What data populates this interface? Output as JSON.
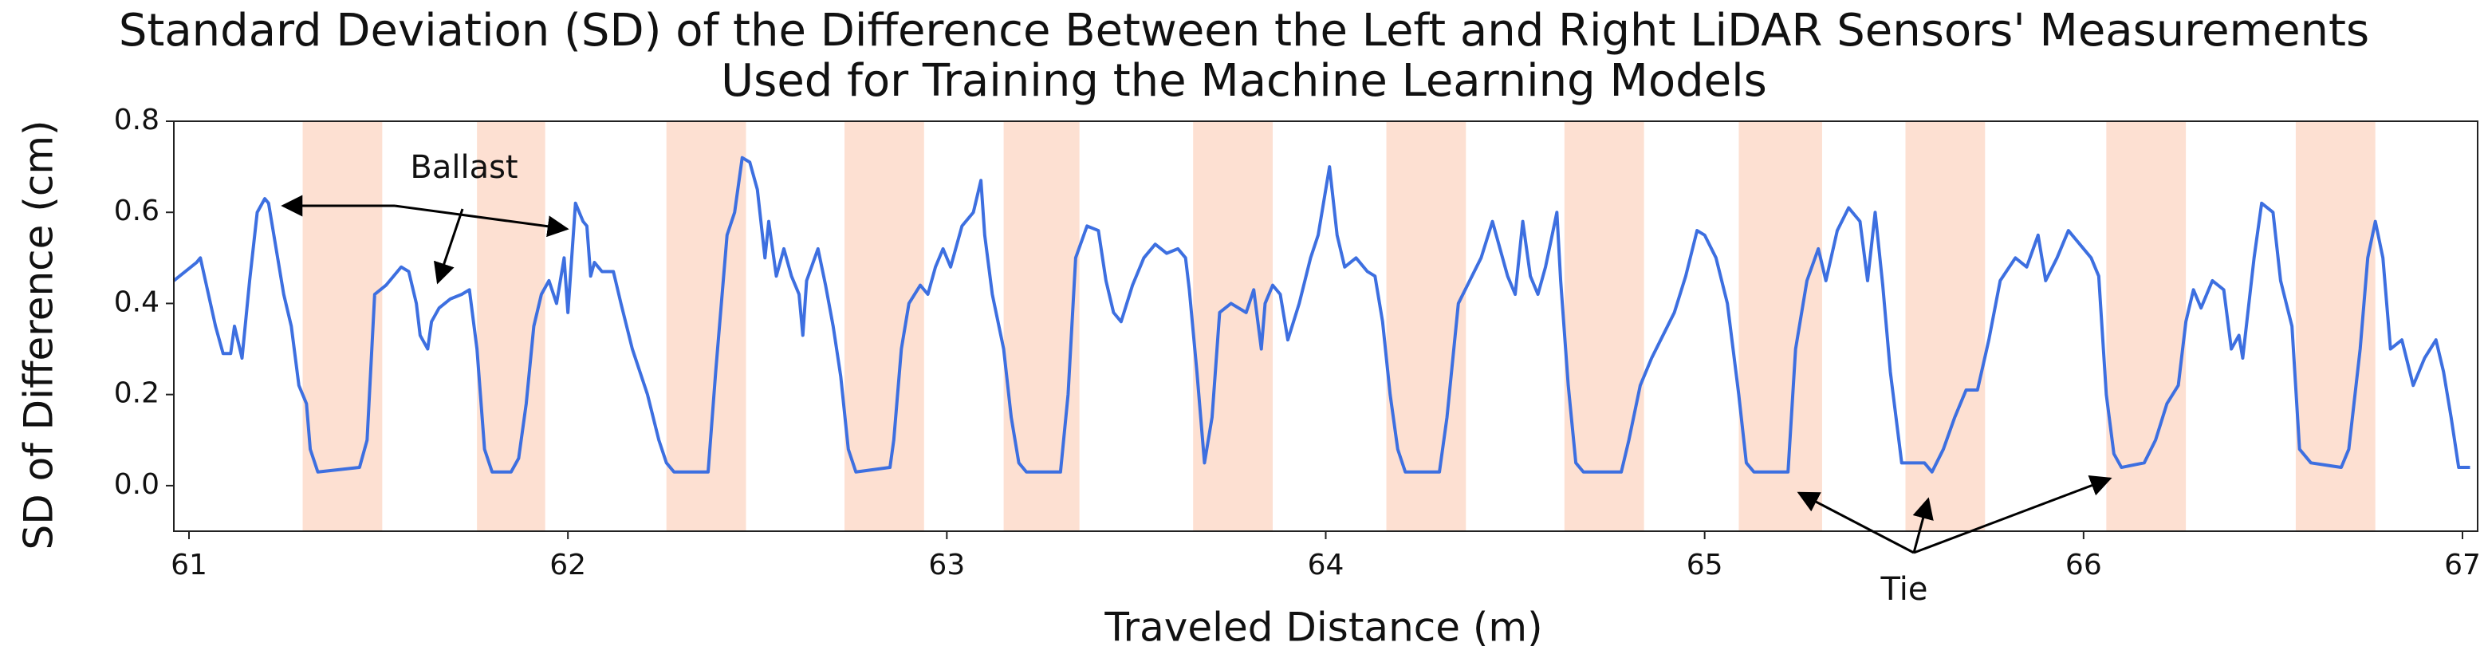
{
  "chart_data": {
    "type": "line",
    "title": [
      "Standard Deviation (SD) of the Difference Between the Left and Right LiDAR Sensors' Measurements",
      "Used for Training the Machine Learning Models"
    ],
    "xlabel": "Traveled Distance (m)",
    "ylabel": "SD of Difference (cm)",
    "xlim": [
      60.96,
      67.04
    ],
    "ylim": [
      -0.1,
      0.8
    ],
    "xticks": [
      61,
      62,
      63,
      64,
      65,
      66,
      67
    ],
    "yticks": [
      {
        "value": 0,
        "label": "0.0"
      },
      0.2,
      0.4,
      0.6,
      0.8
    ],
    "color": "#3d6fe0",
    "shade_color": "#fde0d2",
    "shaded_regions": [
      [
        61.3,
        61.51
      ],
      [
        61.76,
        61.94
      ],
      [
        62.26,
        62.47
      ],
      [
        62.73,
        62.94
      ],
      [
        63.15,
        63.35
      ],
      [
        63.65,
        63.86
      ],
      [
        64.16,
        64.37
      ],
      [
        64.63,
        64.84
      ],
      [
        65.09,
        65.31
      ],
      [
        65.53,
        65.74
      ],
      [
        66.06,
        66.27
      ],
      [
        66.56,
        66.77
      ]
    ],
    "annotations": [
      "Ballast",
      "Tie"
    ],
    "x": [
      60.96,
      61.02,
      61.03,
      61.07,
      61.09,
      61.11,
      61.12,
      61.14,
      61.16,
      61.18,
      61.2,
      61.21,
      61.23,
      61.25,
      61.27,
      61.29,
      61.31,
      61.32,
      61.34,
      61.45,
      61.47,
      61.49,
      61.52,
      61.56,
      61.58,
      61.6,
      61.61,
      61.63,
      61.64,
      61.66,
      61.69,
      61.72,
      61.74,
      61.76,
      61.78,
      61.8,
      61.85,
      61.87,
      61.89,
      61.91,
      61.93,
      61.95,
      61.97,
      61.99,
      62.0,
      62.02,
      62.04,
      62.05,
      62.06,
      62.07,
      62.09,
      62.12,
      62.14,
      62.17,
      62.21,
      62.24,
      62.26,
      62.28,
      62.37,
      62.39,
      62.42,
      62.44,
      62.46,
      62.48,
      62.5,
      62.52,
      62.53,
      62.55,
      62.57,
      62.59,
      62.61,
      62.62,
      62.63,
      62.66,
      62.68,
      62.7,
      62.72,
      62.74,
      62.76,
      62.85,
      62.86,
      62.88,
      62.9,
      62.93,
      62.95,
      62.97,
      62.99,
      63.01,
      63.04,
      63.07,
      63.09,
      63.1,
      63.12,
      63.15,
      63.17,
      63.19,
      63.21,
      63.3,
      63.32,
      63.34,
      63.37,
      63.4,
      63.42,
      63.44,
      63.46,
      63.49,
      63.52,
      63.55,
      63.58,
      63.61,
      63.63,
      63.64,
      63.66,
      63.68,
      63.7,
      63.72,
      63.75,
      63.79,
      63.81,
      63.83,
      63.84,
      63.86,
      63.88,
      63.9,
      63.93,
      63.96,
      63.98,
      64.01,
      64.03,
      64.05,
      64.08,
      64.11,
      64.13,
      64.15,
      64.17,
      64.19,
      64.21,
      64.3,
      64.32,
      64.35,
      64.38,
      64.41,
      64.44,
      64.46,
      64.48,
      64.5,
      64.52,
      64.54,
      64.56,
      64.58,
      64.61,
      64.62,
      64.64,
      64.66,
      64.68,
      64.78,
      64.8,
      64.83,
      64.86,
      64.89,
      64.92,
      64.95,
      64.98,
      65.0,
      65.03,
      65.06,
      65.09,
      65.11,
      65.13,
      65.22,
      65.24,
      65.27,
      65.3,
      65.32,
      65.35,
      65.38,
      65.41,
      65.43,
      65.45,
      65.47,
      65.49,
      65.52,
      65.58,
      65.6,
      65.63,
      65.66,
      65.69,
      65.72,
      65.75,
      65.78,
      65.82,
      65.85,
      65.88,
      65.9,
      65.93,
      65.96,
      65.99,
      66.02,
      66.04,
      66.06,
      66.08,
      66.1,
      66.16,
      66.19,
      66.22,
      66.25,
      66.27,
      66.29,
      66.31,
      66.34,
      66.37,
      66.39,
      66.41,
      66.42,
      66.45,
      66.47,
      66.5,
      66.52,
      66.55,
      66.57,
      66.6,
      66.68,
      66.7,
      66.73,
      66.75,
      66.77,
      66.79,
      66.81,
      66.84,
      66.87,
      66.9,
      66.93,
      66.95,
      66.97,
      66.99,
      67.02
    ],
    "values": [
      0.45,
      0.49,
      0.5,
      0.35,
      0.29,
      0.29,
      0.35,
      0.28,
      0.45,
      0.6,
      0.63,
      0.62,
      0.52,
      0.42,
      0.35,
      0.22,
      0.18,
      0.08,
      0.03,
      0.04,
      0.1,
      0.42,
      0.44,
      0.48,
      0.47,
      0.4,
      0.33,
      0.3,
      0.36,
      0.39,
      0.41,
      0.42,
      0.43,
      0.3,
      0.08,
      0.03,
      0.03,
      0.06,
      0.18,
      0.35,
      0.42,
      0.45,
      0.4,
      0.5,
      0.38,
      0.62,
      0.58,
      0.57,
      0.46,
      0.49,
      0.47,
      0.47,
      0.4,
      0.3,
      0.2,
      0.1,
      0.05,
      0.03,
      0.03,
      0.25,
      0.55,
      0.6,
      0.72,
      0.71,
      0.65,
      0.5,
      0.58,
      0.46,
      0.52,
      0.46,
      0.42,
      0.33,
      0.45,
      0.52,
      0.44,
      0.35,
      0.24,
      0.08,
      0.03,
      0.04,
      0.1,
      0.3,
      0.4,
      0.44,
      0.42,
      0.48,
      0.52,
      0.48,
      0.57,
      0.6,
      0.67,
      0.55,
      0.42,
      0.3,
      0.15,
      0.05,
      0.03,
      0.03,
      0.2,
      0.5,
      0.57,
      0.56,
      0.45,
      0.38,
      0.36,
      0.44,
      0.5,
      0.53,
      0.51,
      0.52,
      0.5,
      0.43,
      0.25,
      0.05,
      0.15,
      0.38,
      0.4,
      0.38,
      0.43,
      0.3,
      0.4,
      0.44,
      0.42,
      0.32,
      0.4,
      0.5,
      0.55,
      0.7,
      0.55,
      0.48,
      0.5,
      0.47,
      0.46,
      0.36,
      0.2,
      0.08,
      0.03,
      0.03,
      0.15,
      0.4,
      0.45,
      0.5,
      0.58,
      0.52,
      0.46,
      0.42,
      0.58,
      0.46,
      0.42,
      0.48,
      0.6,
      0.45,
      0.22,
      0.05,
      0.03,
      0.03,
      0.1,
      0.22,
      0.28,
      0.33,
      0.38,
      0.46,
      0.56,
      0.55,
      0.5,
      0.4,
      0.2,
      0.05,
      0.03,
      0.03,
      0.3,
      0.45,
      0.52,
      0.45,
      0.56,
      0.61,
      0.58,
      0.45,
      0.6,
      0.44,
      0.25,
      0.05,
      0.05,
      0.03,
      0.08,
      0.15,
      0.21,
      0.21,
      0.32,
      0.45,
      0.5,
      0.48,
      0.55,
      0.45,
      0.5,
      0.56,
      0.53,
      0.5,
      0.46,
      0.2,
      0.07,
      0.04,
      0.05,
      0.1,
      0.18,
      0.22,
      0.36,
      0.43,
      0.39,
      0.45,
      0.43,
      0.3,
      0.33,
      0.28,
      0.5,
      0.62,
      0.6,
      0.45,
      0.35,
      0.08,
      0.05,
      0.04,
      0.08,
      0.3,
      0.5,
      0.58,
      0.5,
      0.3,
      0.32,
      0.22,
      0.28,
      0.32,
      0.25,
      0.15,
      0.04,
      0.04
    ]
  }
}
